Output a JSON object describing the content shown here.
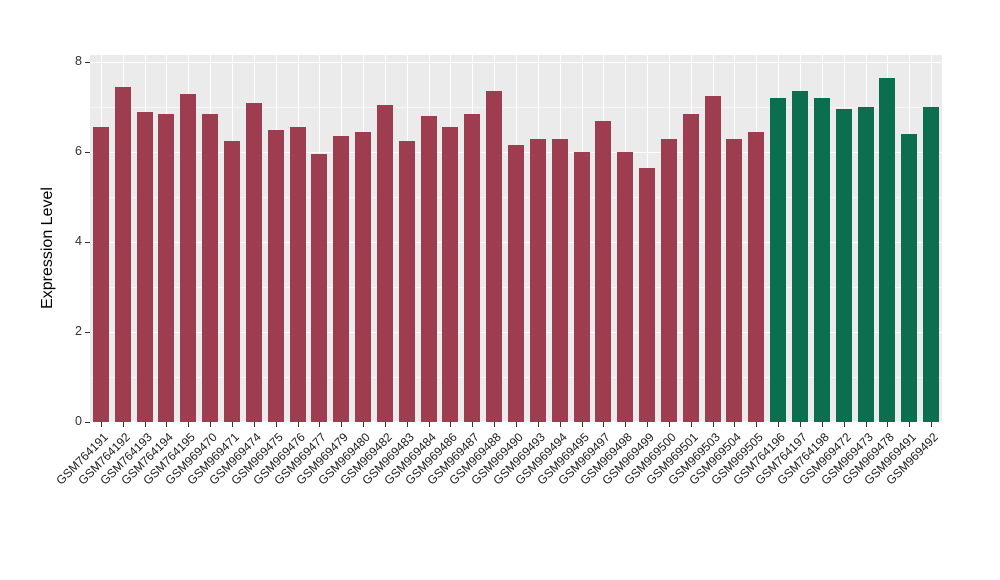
{
  "chart_data": {
    "type": "bar",
    "title": "",
    "ylabel": "Expression Level",
    "xlabel": "",
    "ylim": [
      0,
      8
    ],
    "yticks": [
      0,
      2,
      4,
      6,
      8
    ],
    "grid": true,
    "legend": "none",
    "panel_bg": "#EBEBEB",
    "grid_major_color": "#FFFFFF",
    "bar_group_colors": {
      "maroon": "#9E3D4F",
      "green": "#0B6E4E"
    },
    "categories": [
      "GSM764191",
      "GSM764192",
      "GSM764193",
      "GSM764194",
      "GSM764195",
      "GSM969470",
      "GSM969471",
      "GSM969474",
      "GSM969475",
      "GSM969476",
      "GSM969477",
      "GSM969479",
      "GSM969480",
      "GSM969482",
      "GSM969483",
      "GSM969484",
      "GSM969486",
      "GSM969487",
      "GSM969488",
      "GSM969490",
      "GSM969493",
      "GSM969494",
      "GSM969495",
      "GSM969497",
      "GSM969498",
      "GSM969499",
      "GSM969500",
      "GSM969501",
      "GSM969503",
      "GSM969504",
      "GSM969505",
      "GSM764196",
      "GSM764197",
      "GSM764198",
      "GSM969472",
      "GSM969473",
      "GSM969478",
      "GSM969491",
      "GSM969492"
    ],
    "values": [
      6.55,
      7.45,
      6.9,
      6.85,
      7.3,
      6.85,
      6.25,
      7.1,
      6.5,
      6.55,
      5.95,
      6.35,
      6.45,
      7.05,
      6.25,
      6.8,
      6.55,
      6.85,
      7.35,
      6.15,
      6.3,
      6.3,
      6.0,
      6.7,
      6.0,
      5.65,
      6.3,
      6.85,
      7.25,
      6.3,
      6.45,
      7.2,
      7.35,
      7.2,
      6.95,
      7.0,
      7.65,
      6.4,
      7.0
    ],
    "bar_colors": [
      "#9E3D4F",
      "#9E3D4F",
      "#9E3D4F",
      "#9E3D4F",
      "#9E3D4F",
      "#9E3D4F",
      "#9E3D4F",
      "#9E3D4F",
      "#9E3D4F",
      "#9E3D4F",
      "#9E3D4F",
      "#9E3D4F",
      "#9E3D4F",
      "#9E3D4F",
      "#9E3D4F",
      "#9E3D4F",
      "#9E3D4F",
      "#9E3D4F",
      "#9E3D4F",
      "#9E3D4F",
      "#9E3D4F",
      "#9E3D4F",
      "#9E3D4F",
      "#9E3D4F",
      "#9E3D4F",
      "#9E3D4F",
      "#9E3D4F",
      "#9E3D4F",
      "#9E3D4F",
      "#9E3D4F",
      "#9E3D4F",
      "#0B6E4E",
      "#0B6E4E",
      "#0B6E4E",
      "#0B6E4E",
      "#0B6E4E",
      "#0B6E4E",
      "#0B6E4E",
      "#0B6E4E"
    ]
  }
}
